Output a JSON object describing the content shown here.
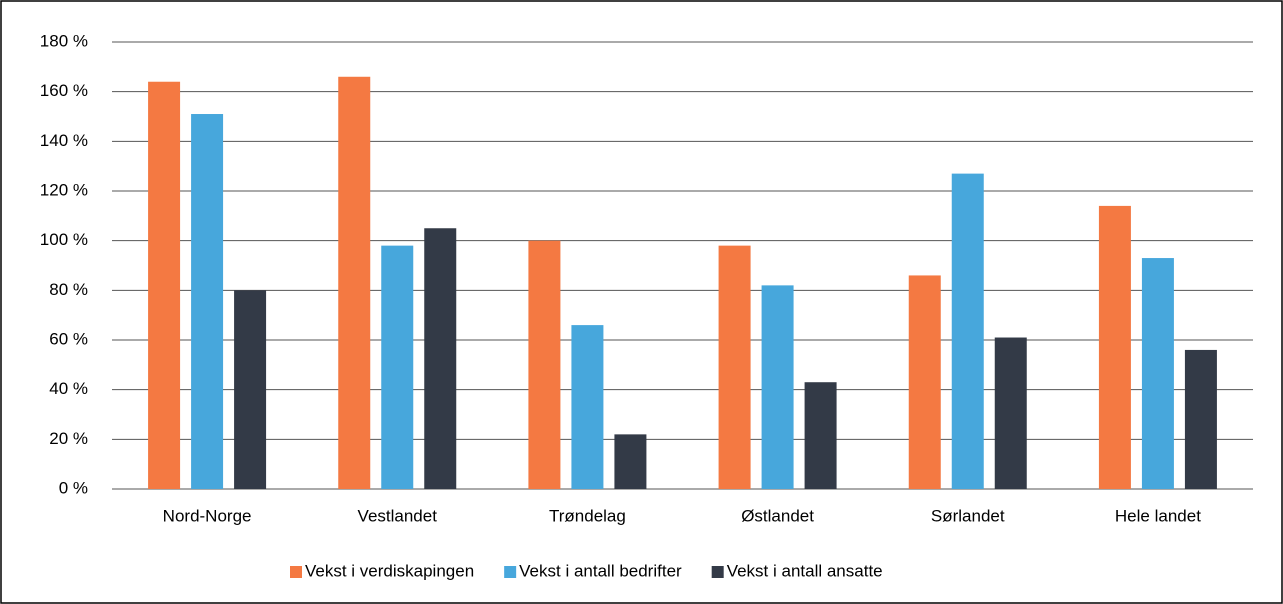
{
  "chart_data": {
    "type": "bar",
    "categories": [
      "Nord-Norge",
      "Vestlandet",
      "Trøndelag",
      "Østlandet",
      "Sørlandet",
      "Hele landet"
    ],
    "series": [
      {
        "name": "Vekst i verdiskapingen",
        "color": "#f47942",
        "values": [
          164,
          166,
          100,
          98,
          86,
          114
        ]
      },
      {
        "name": "Vekst i antall bedrifter",
        "color": "#47a7dc",
        "values": [
          151,
          98,
          66,
          82,
          127,
          93
        ]
      },
      {
        "name": "Vekst i antall ansatte",
        "color": "#333a47",
        "values": [
          80,
          105,
          22,
          43,
          61,
          56
        ]
      }
    ],
    "ylim": [
      0,
      180
    ],
    "yticks": [
      {
        "value": 0,
        "label": "0 %"
      },
      {
        "value": 20,
        "label": "20 %"
      },
      {
        "value": 40,
        "label": "40 %"
      },
      {
        "value": 60,
        "label": "60 %"
      },
      {
        "value": 80,
        "label": "80 %"
      },
      {
        "value": 100,
        "label": "100 %"
      },
      {
        "value": 120,
        "label": "120 %"
      },
      {
        "value": 140,
        "label": "140 %"
      },
      {
        "value": 160,
        "label": "160 %"
      },
      {
        "value": 180,
        "label": "180 %"
      }
    ],
    "grid": true,
    "legend": "bottom"
  }
}
